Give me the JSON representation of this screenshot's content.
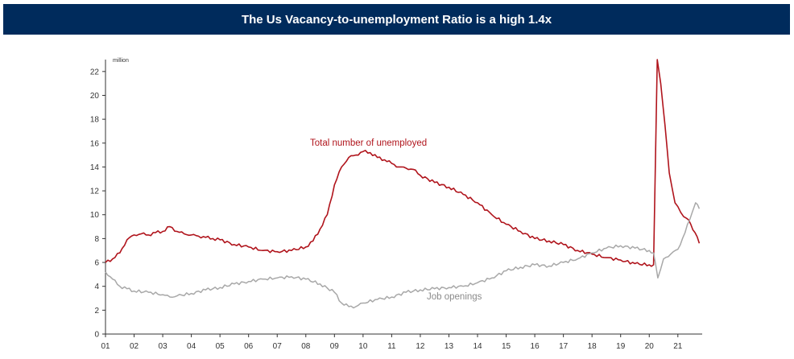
{
  "header": {
    "title": "The Us Vacancy-to-unemployment Ratio is a high 1.4x"
  },
  "colors": {
    "header_bg": "#002b5c",
    "unemployed": "#b0141c",
    "openings": "#a8a8a8",
    "axis": "#333333"
  },
  "chart_data": {
    "type": "line",
    "title": "The Us Vacancy-to-unemployment Ratio is a high 1.4x",
    "unit_label": "million",
    "xlabel": "",
    "ylabel": "",
    "xlim": [
      2001,
      2021.85
    ],
    "ylim": [
      0,
      23
    ],
    "x_ticks": [
      2001,
      2002,
      2003,
      2004,
      2005,
      2006,
      2007,
      2008,
      2009,
      2010,
      2011,
      2012,
      2013,
      2014,
      2015,
      2016,
      2017,
      2018,
      2019,
      2020,
      2021
    ],
    "x_tick_labels": [
      "01",
      "02",
      "03",
      "04",
      "05",
      "06",
      "07",
      "08",
      "09",
      "10",
      "11",
      "12",
      "13",
      "14",
      "15",
      "16",
      "17",
      "18",
      "19",
      "20",
      "21"
    ],
    "y_ticks": [
      0,
      2,
      4,
      6,
      8,
      10,
      12,
      14,
      16,
      18,
      20,
      22
    ],
    "y_tick_labels": [
      "0",
      "2",
      "4",
      "6",
      "8",
      "10",
      "12",
      "14",
      "16",
      "18",
      "20",
      "22"
    ],
    "series": [
      {
        "name": "Total number of unemployed",
        "label": "Total number of unemployed",
        "color": "#b0141c",
        "x": [
          2001.0,
          2001.25,
          2001.5,
          2001.75,
          2002.0,
          2002.25,
          2002.5,
          2002.75,
          2003.0,
          2003.25,
          2003.5,
          2003.75,
          2004.0,
          2004.25,
          2004.5,
          2004.75,
          2005.0,
          2005.5,
          2006.0,
          2006.5,
          2007.0,
          2007.5,
          2008.0,
          2008.25,
          2008.5,
          2008.75,
          2009.0,
          2009.25,
          2009.5,
          2009.75,
          2010.0,
          2010.25,
          2010.5,
          2010.75,
          2011.0,
          2011.25,
          2011.5,
          2011.75,
          2012.0,
          2012.5,
          2013.0,
          2013.5,
          2014.0,
          2014.5,
          2015.0,
          2015.5,
          2016.0,
          2016.5,
          2017.0,
          2017.5,
          2018.0,
          2018.5,
          2019.0,
          2019.5,
          2020.0,
          2020.15,
          2020.28,
          2020.4,
          2020.55,
          2020.7,
          2020.9,
          2021.1,
          2021.3,
          2021.45,
          2021.6,
          2021.75
        ],
        "y": [
          6.0,
          6.3,
          6.8,
          7.9,
          8.3,
          8.4,
          8.3,
          8.5,
          8.6,
          9.0,
          8.6,
          8.4,
          8.3,
          8.2,
          8.1,
          8.0,
          7.9,
          7.5,
          7.3,
          7.0,
          6.9,
          7.0,
          7.3,
          7.8,
          8.8,
          10.0,
          12.5,
          14.0,
          14.8,
          15.0,
          15.3,
          15.2,
          14.8,
          14.6,
          14.3,
          14.0,
          13.9,
          13.8,
          13.3,
          12.7,
          12.3,
          11.7,
          11.0,
          10.0,
          9.2,
          8.6,
          8.0,
          7.8,
          7.5,
          7.0,
          6.7,
          6.4,
          6.2,
          5.9,
          5.8,
          5.8,
          23.0,
          21.0,
          17.5,
          13.5,
          11.0,
          10.2,
          9.7,
          9.2,
          8.5,
          7.6
        ]
      },
      {
        "name": "Job openings",
        "label": "Job openings",
        "color": "#a8a8a8",
        "x": [
          2001.0,
          2001.25,
          2001.5,
          2001.75,
          2002.0,
          2002.5,
          2003.0,
          2003.25,
          2003.5,
          2004.0,
          2004.5,
          2005.0,
          2005.5,
          2006.0,
          2006.5,
          2007.0,
          2007.5,
          2008.0,
          2008.5,
          2009.0,
          2009.25,
          2009.5,
          2009.75,
          2010.0,
          2010.5,
          2011.0,
          2011.5,
          2012.0,
          2012.5,
          2013.0,
          2013.5,
          2014.0,
          2014.5,
          2015.0,
          2015.5,
          2016.0,
          2016.5,
          2017.0,
          2017.5,
          2018.0,
          2018.5,
          2019.0,
          2019.5,
          2020.0,
          2020.15,
          2020.3,
          2020.5,
          2020.75,
          2021.0,
          2021.25,
          2021.5,
          2021.62,
          2021.75
        ],
        "y": [
          5.2,
          4.6,
          4.0,
          3.8,
          3.6,
          3.5,
          3.3,
          3.1,
          3.2,
          3.4,
          3.7,
          3.9,
          4.2,
          4.4,
          4.6,
          4.7,
          4.8,
          4.6,
          4.2,
          3.5,
          2.6,
          2.3,
          2.3,
          2.6,
          2.9,
          3.1,
          3.5,
          3.7,
          3.8,
          3.9,
          4.0,
          4.3,
          4.7,
          5.3,
          5.6,
          5.8,
          5.7,
          6.0,
          6.3,
          6.8,
          7.2,
          7.4,
          7.2,
          7.0,
          6.8,
          4.7,
          6.3,
          6.7,
          7.1,
          8.5,
          10.2,
          11.0,
          10.5
        ]
      }
    ],
    "annotations": [
      {
        "text": "Total number of unemployed",
        "series": "Total number of unemployed"
      },
      {
        "text": "Job openings",
        "series": "Job openings"
      }
    ]
  }
}
